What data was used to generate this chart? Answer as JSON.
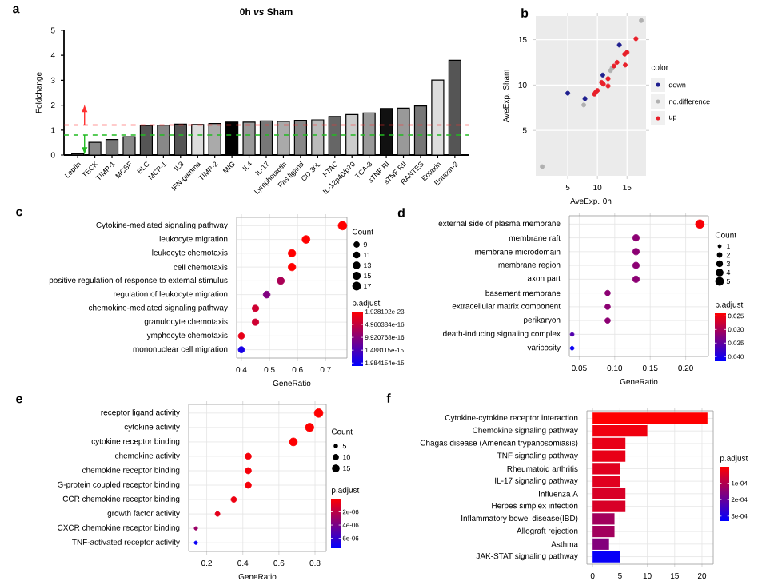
{
  "chart_data": [
    {
      "type": "bar",
      "title": "0h *vs* Sham",
      "ylabel": "Foldchange",
      "categories": [
        "Leptin",
        "TECK",
        "TIMP-1",
        "MCSF",
        "BLC",
        "MCP-1",
        "IL3",
        "IFN-gamma",
        "TIMP-2",
        "MIG",
        "IL4",
        "IL-17",
        "Lymphotactin",
        "Fas ligand",
        "CD 30L",
        "I-TAC",
        "IL-12p40/p70",
        "TCA-3",
        "sTNF RI",
        "sTNF RII",
        "RANTES",
        "Eotaxin",
        "Eotaxin-2"
      ],
      "values": [
        0.05,
        0.51,
        0.62,
        0.73,
        1.18,
        1.2,
        1.24,
        1.22,
        1.26,
        1.32,
        1.32,
        1.37,
        1.35,
        1.39,
        1.41,
        1.54,
        1.62,
        1.69,
        1.86,
        1.88,
        1.97,
        3.01,
        3.8
      ],
      "colors": [
        "#444444",
        "#888888",
        "#777777",
        "#888888",
        "#555555",
        "#888888",
        "#555555",
        "#dddddd",
        "#aaaaaa",
        "#000000",
        "#999999",
        "#777777",
        "#aaaaaa",
        "#888888",
        "#bbbbbb",
        "#666666",
        "#cccccc",
        "#999999",
        "#111111",
        "#999999",
        "#777777",
        "#dddddd",
        "#555555"
      ],
      "ylim": [
        0,
        5
      ],
      "yticks": [
        0,
        1,
        2,
        3,
        4,
        5
      ],
      "ref_lines": [
        {
          "axis": "y",
          "value": 1.2,
          "color": "#ff3030",
          "line_style": "dashed"
        },
        {
          "axis": "y",
          "value": 0.8,
          "color": "#22bb22",
          "line_style": "dashed"
        }
      ],
      "annotations": [
        "a"
      ]
    },
    {
      "type": "scatter",
      "xlabel": "AveExp. 0h",
      "ylabel": "AveExp. Sham",
      "legend_title": "color",
      "legend": "right",
      "marker": "circle",
      "grid": true,
      "xlim": [
        -0.4,
        18.2
      ],
      "ylim": [
        0,
        17.6
      ],
      "xticks": [
        5,
        10,
        15
      ],
      "yticks": [
        5,
        10,
        15
      ],
      "series": [
        {
          "name": "down",
          "color": "#1f1f8f",
          "x": [
            5.0,
            7.9,
            10.9,
            13.7
          ],
          "values": [
            9.1,
            8.5,
            11.1,
            14.4
          ]
        },
        {
          "name": "no.difference",
          "color": "#b0b0b0",
          "x": [
            17.4,
            0.7,
            7.7,
            12.2,
            12.5
          ],
          "values": [
            17.1,
            1.0,
            7.8,
            11.6,
            11.9
          ]
        },
        {
          "name": "up",
          "color": "#e8202a",
          "x": [
            16.5,
            15.0,
            14.6,
            14.7,
            13.3,
            12.8,
            11.8,
            10.7,
            11.0,
            11.8,
            10.0,
            9.7,
            9.5
          ],
          "values": [
            15.1,
            13.6,
            13.4,
            12.2,
            12.5,
            12.1,
            10.7,
            10.3,
            10.1,
            9.9,
            9.4,
            9.2,
            9.0
          ]
        }
      ],
      "annotations": [
        "b"
      ]
    },
    {
      "type": "scatter",
      "orientation": "horizontal",
      "xlabel": "GeneRatio",
      "marker": "circle",
      "grid": true,
      "categories": [
        "Cytokine-mediated signaling pathway",
        "leukocyte migration",
        "leukocyte chemotaxis",
        "cell chemotaxis",
        "positive regulation of response to external stimulus",
        "regulation of leukocyte migration",
        "chemokine-mediated signaling pathway",
        "granulocyte chemotaxis",
        "lymphocyte chemotaxis",
        "mononuclear cell migration"
      ],
      "values": [
        0.76,
        0.63,
        0.58,
        0.58,
        0.54,
        0.49,
        0.45,
        0.45,
        0.4,
        0.4
      ],
      "sizes": [
        17,
        14,
        13,
        13,
        12,
        11,
        10,
        10,
        9,
        9
      ],
      "cvalues": [
        1e-22,
        1e-19,
        1e-18,
        1e-18,
        7e-16,
        1.05e-15,
        4e-16,
        4e-16,
        2e-16,
        1.9e-15
      ],
      "xlim": [
        0.383,
        0.776
      ],
      "xticks": [
        0.4,
        0.5,
        0.6,
        0.7
      ],
      "legend_title": "Count",
      "size_legend": [
        9,
        11,
        13,
        15,
        17
      ],
      "clabel": "p.adjust",
      "clim": [
        0,
        2.1e-15
      ],
      "cticks": [
        {
          "value": 1.928102e-23,
          "label": "1.928102e-23"
        },
        {
          "value": 4.960384e-16,
          "label": "4.960384e-16"
        },
        {
          "value": 9.920768e-16,
          "label": "9.920768e-16"
        },
        {
          "value": 1.488115e-15,
          "label": "1.488115e-15"
        },
        {
          "value": 1.984154e-15,
          "label": "1.984154e-15"
        }
      ],
      "annotations": [
        "c"
      ]
    },
    {
      "type": "scatter",
      "orientation": "horizontal",
      "xlabel": "GeneRatio",
      "marker": "circle",
      "grid": true,
      "categories": [
        "external side of plasma membrane",
        "membrane raft",
        "membrane microdomain",
        "membrane region",
        "axon part",
        "basement membrane",
        "extracellular matrix component",
        "perikaryon",
        "death-inducing signaling complex",
        "varicosity"
      ],
      "values": [
        0.22,
        0.13,
        0.13,
        0.13,
        0.13,
        0.09,
        0.09,
        0.09,
        0.04,
        0.04
      ],
      "sizes": [
        5,
        3,
        3,
        3,
        3,
        2,
        2,
        2,
        1,
        1
      ],
      "cvalues": [
        0.0245,
        0.032,
        0.032,
        0.032,
        0.032,
        0.032,
        0.032,
        0.032,
        0.036,
        0.041
      ],
      "xlim": [
        0.036,
        0.232
      ],
      "xticks": [
        {
          "value": 0.05,
          "label": "0.05"
        },
        {
          "value": 0.1,
          "label": "0.10"
        },
        {
          "value": 0.15,
          "label": "0.15"
        },
        {
          "value": 0.2,
          "label": "0.20"
        }
      ],
      "legend_title": "Count",
      "size_legend": [
        1,
        2,
        3,
        4,
        5
      ],
      "clabel": "p.adjust",
      "clim": [
        0.024,
        0.0417
      ],
      "cticks": [
        {
          "value": 0.025,
          "label": "0.025"
        },
        {
          "value": 0.03,
          "label": "0.030"
        },
        {
          "value": 0.035,
          "label": "0.035"
        },
        {
          "value": 0.04,
          "label": "0.040"
        }
      ],
      "annotations": [
        "d"
      ]
    },
    {
      "type": "scatter",
      "orientation": "horizontal",
      "xlabel": "GeneRatio",
      "marker": "circle",
      "grid": true,
      "categories": [
        "receptor ligand activity",
        "cytokine activity",
        "cytokine receptor binding",
        "chemokine activity",
        "chemokine receptor binding",
        "G-protein coupled receptor binding",
        "CCR chemokine receptor binding",
        "growth factor activity",
        "CXCR chemokine receptor binding",
        "TNF-activated receptor activity"
      ],
      "values": [
        0.82,
        0.77,
        0.68,
        0.43,
        0.43,
        0.43,
        0.35,
        0.26,
        0.14,
        0.14
      ],
      "sizes": [
        19,
        18,
        16,
        10,
        10,
        10,
        8,
        6,
        3,
        3
      ],
      "cvalues": [
        1e-08,
        2e-08,
        5e-08,
        3e-07,
        3e-07,
        3e-07,
        5e-07,
        8e-07,
        3e-06,
        7.2e-06
      ],
      "xlim": [
        0.1,
        0.862
      ],
      "xticks": [
        0.2,
        0.4,
        0.6,
        0.8
      ],
      "legend_title": "Count",
      "size_legend": [
        5,
        10,
        15
      ],
      "clabel": "p.adjust",
      "clim": [
        0,
        7.5e-06
      ],
      "cticks": [
        {
          "value": 2e-06,
          "label": "2e-06"
        },
        {
          "value": 4e-06,
          "label": "4e-06"
        },
        {
          "value": 6e-06,
          "label": "6e-06"
        }
      ],
      "annotations": [
        "e"
      ]
    },
    {
      "type": "bar",
      "orientation": "horizontal",
      "grid": true,
      "categories": [
        "Cytokine-cytokine receptor interaction",
        "Chemokine signaling pathway",
        "Chagas disease (American trypanosomiasis)",
        "TNF signaling pathway",
        "Rheumatoid arthritis",
        "IL-17 signaling pathway",
        "Influenza A",
        "Herpes simplex infection",
        "Inflammatory bowel disease(IBD)",
        "Allograft rejection",
        "Asthma",
        "JAK-STAT signaling pathway"
      ],
      "values": [
        21,
        10,
        6,
        6,
        5,
        5,
        6,
        6,
        4,
        4,
        3,
        5
      ],
      "cvalues": [
        1e-06,
        2e-05,
        3e-05,
        3e-05,
        4e-05,
        4e-05,
        5e-05,
        5e-05,
        0.00012,
        0.00012,
        0.00016,
        0.00032
      ],
      "xlim": [
        -1.05,
        22.05
      ],
      "xticks": [
        0,
        5,
        10,
        15,
        20
      ],
      "clabel": "p.adjust",
      "clim": [
        0,
        0.00033
      ],
      "cticks": [
        {
          "value": 0.0001,
          "label": "1e-04"
        },
        {
          "value": 0.0002,
          "label": "2e-04"
        },
        {
          "value": 0.0003,
          "label": "3e-04"
        }
      ],
      "annotations": [
        "f"
      ]
    }
  ]
}
